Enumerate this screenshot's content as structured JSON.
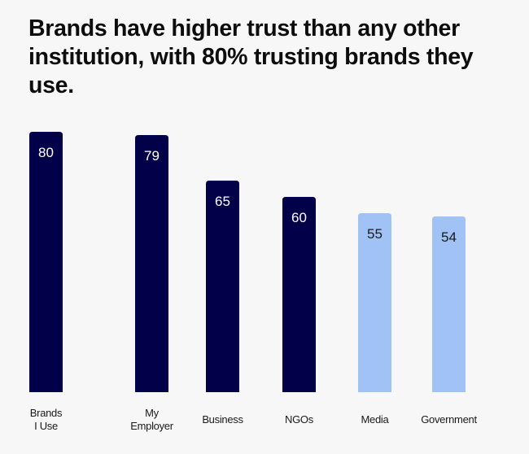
{
  "chart_data": {
    "type": "bar",
    "title": "Brands have higher trust than any other institution, with 80% trusting brands they use.",
    "categories": [
      "Brands\nI Use",
      "My\nEmployer",
      "Business",
      "NGOs",
      "Media",
      "Government"
    ],
    "values": [
      80,
      79,
      65,
      60,
      55,
      54
    ],
    "bar_colors": [
      "#03004a",
      "#03004a",
      "#03004a",
      "#03004a",
      "#a0c2f5",
      "#a0c2f5"
    ],
    "value_label_colors": [
      "#ffffff",
      "#ffffff",
      "#ffffff",
      "#ffffff",
      "#1a1a1a",
      "#1a1a1a"
    ],
    "xlabel": "",
    "ylabel": "",
    "ylim": [
      0,
      80
    ],
    "grid": false,
    "legend": "none",
    "data_labels": "inside-top"
  }
}
